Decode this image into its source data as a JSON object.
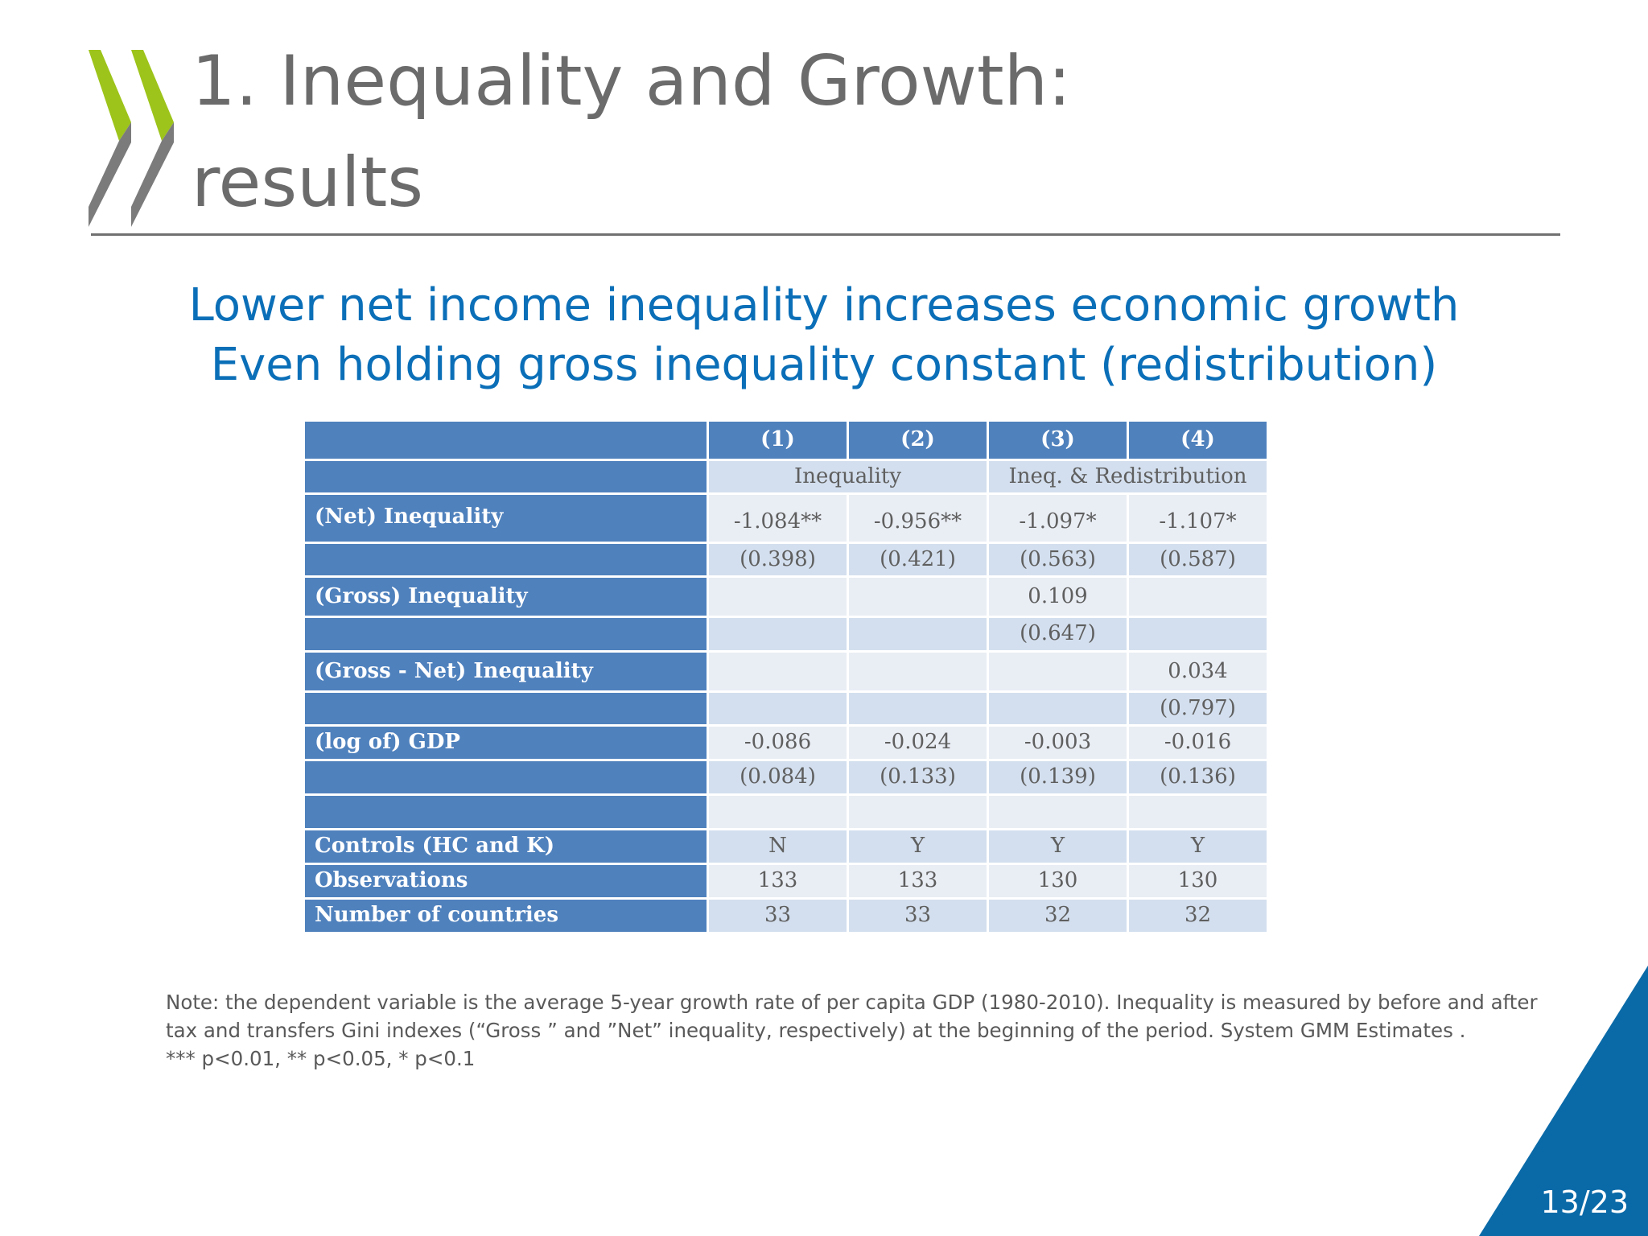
{
  "slide": {
    "title_line1": "1. Inequality and Growth:",
    "title_line2": "results",
    "subtitle_line1": "Lower net income inequality increases economic growth",
    "subtitle_line2": "Even holding gross inequality constant (redistribution)",
    "page_number": "13/23"
  },
  "table": {
    "columns": [
      "(1)",
      "(2)",
      "(3)",
      "(4)"
    ],
    "groups": [
      "Inequality",
      "Ineq. & Redistribution"
    ],
    "rows": [
      {
        "label": "(Net) Inequality",
        "cells": [
          "-1.084**",
          "-0.956**",
          "-1.097*",
          "-1.107*"
        ]
      },
      {
        "label": "",
        "cells": [
          "(0.398)",
          "(0.421)",
          "(0.563)",
          "(0.587)"
        ]
      },
      {
        "label": "(Gross) Inequality",
        "cells": [
          "",
          "",
          "0.109",
          ""
        ]
      },
      {
        "label": "",
        "cells": [
          "",
          "",
          "(0.647)",
          ""
        ]
      },
      {
        "label": "(Gross - Net) Inequality",
        "cells": [
          "",
          "",
          "",
          "0.034"
        ]
      },
      {
        "label": "",
        "cells": [
          "",
          "",
          "",
          "(0.797)"
        ]
      },
      {
        "label": "(log of) GDP",
        "cells": [
          "-0.086",
          "-0.024",
          "-0.003",
          "-0.016"
        ]
      },
      {
        "label": "",
        "cells": [
          "(0.084)",
          "(0.133)",
          "(0.139)",
          "(0.136)"
        ]
      },
      {
        "label": "",
        "cells": [
          "",
          "",
          "",
          ""
        ]
      },
      {
        "label": "Controls (HC and K)",
        "cells": [
          "N",
          "Y",
          "Y",
          "Y"
        ]
      },
      {
        "label": "Observations",
        "cells": [
          "133",
          "133",
          "130",
          "130"
        ]
      },
      {
        "label": "Number of countries",
        "cells": [
          "33",
          "33",
          "32",
          "32"
        ]
      }
    ]
  },
  "note": {
    "line1": "Note: the dependent variable is the average 5-year growth rate of per capita GDP (1980-2010). Inequality is measured by before and after",
    "line2": "tax and transfers Gini indexes (“Gross ” and ”Net” inequality, respectively) at the beginning of the period. System GMM Estimates .",
    "line3": "*** p<0.01, ** p<0.05, * p<0.1"
  },
  "colors": {
    "title": "#6b6b6b",
    "subtitle": "#0b6fb8",
    "table_header": "#4f81bd",
    "table_band_light": "#e9edf4",
    "table_band_dark": "#d3dfee",
    "logo_green": "#9dc41a",
    "logo_gray": "#7b7b7b",
    "corner_blue": "#0a6aa8"
  },
  "icons": [
    "oecd-chevron-logo"
  ]
}
